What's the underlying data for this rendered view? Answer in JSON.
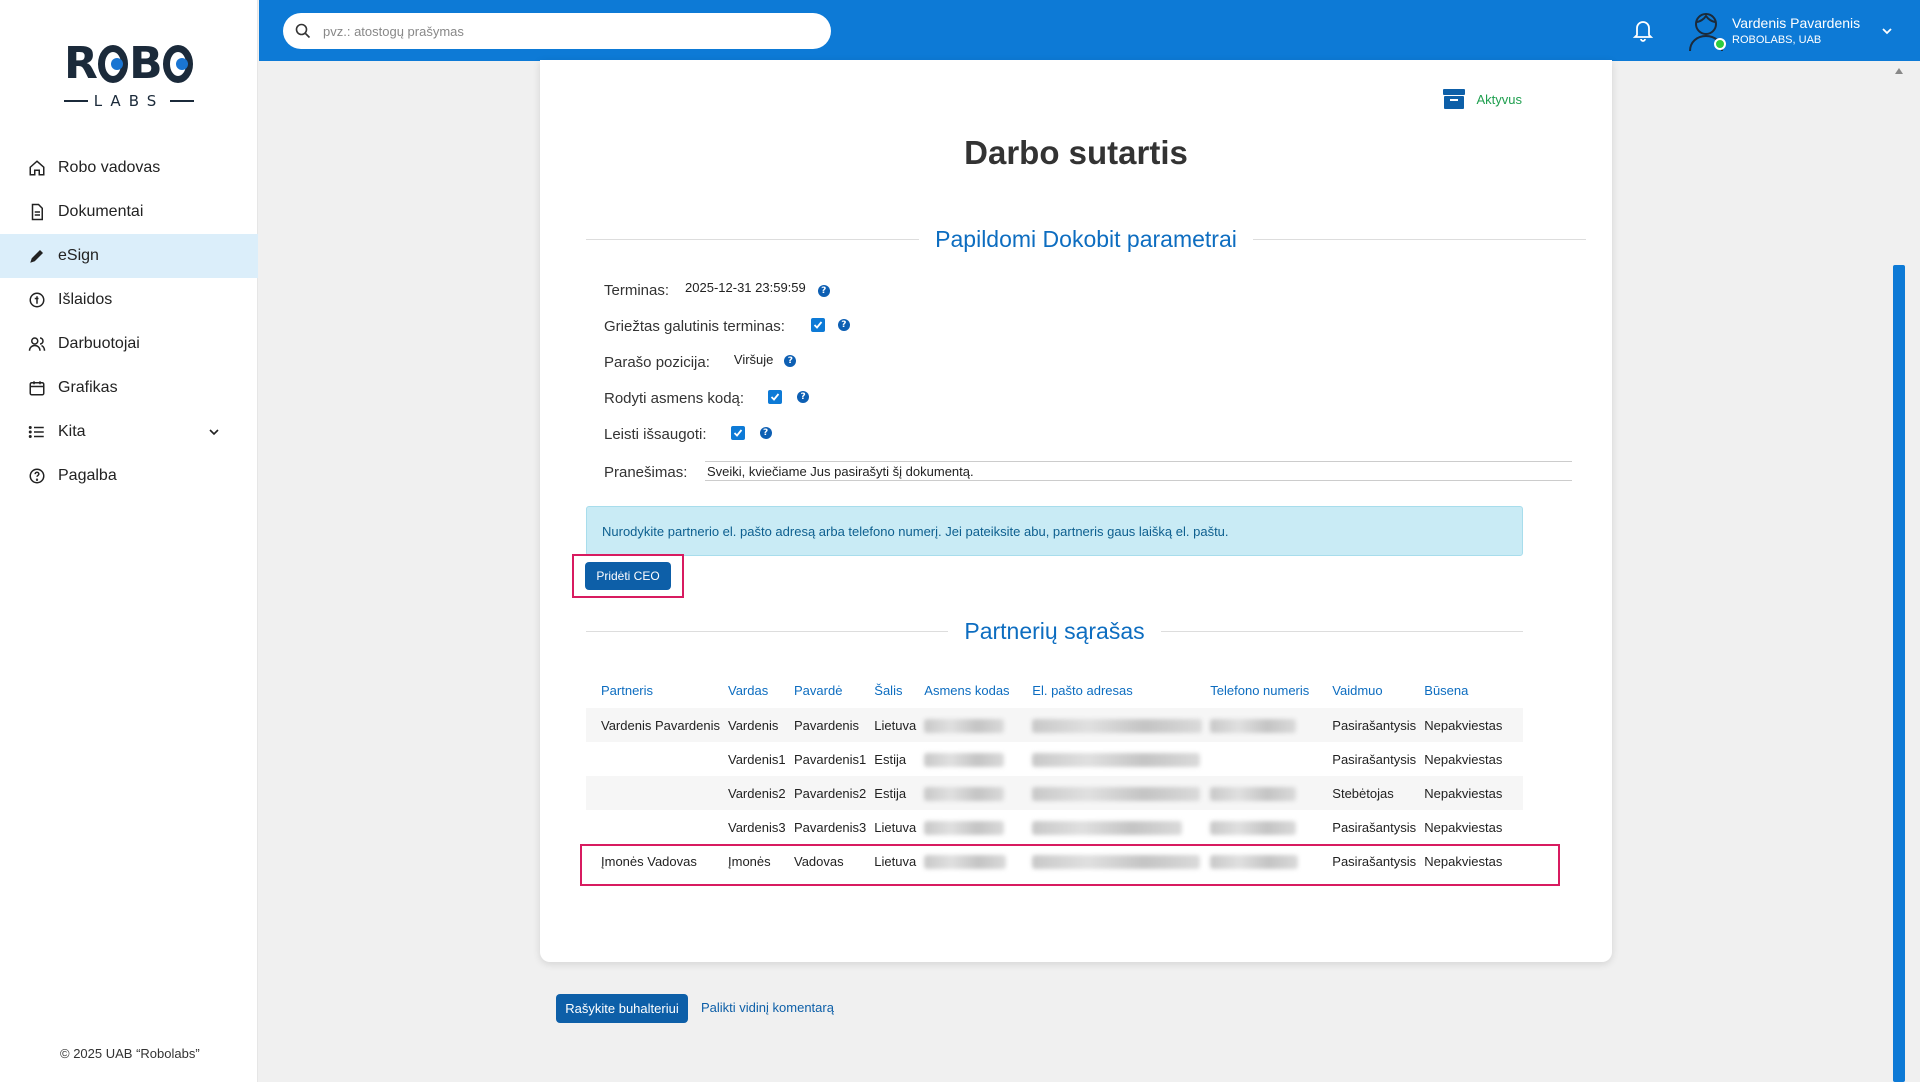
{
  "search": {
    "placeholder": "pvz.: atostogų prašymas"
  },
  "user": {
    "name": "Vardenis Pavardenis",
    "company": "ROBOLABS, UAB"
  },
  "logo": {
    "top": "ROBO",
    "bottom": "LABS"
  },
  "sidebar": {
    "items": [
      {
        "label": "Robo vadovas",
        "icon": "home-icon"
      },
      {
        "label": "Dokumentai",
        "icon": "document-icon"
      },
      {
        "label": "eSign",
        "icon": "pen-icon",
        "active": true
      },
      {
        "label": "Išlaidos",
        "icon": "expenses-icon"
      },
      {
        "label": "Darbuotojai",
        "icon": "users-icon"
      },
      {
        "label": "Grafikas",
        "icon": "calendar-icon"
      },
      {
        "label": "Kita",
        "icon": "list-icon"
      },
      {
        "label": "Pagalba",
        "icon": "help-circle-icon"
      }
    ],
    "copyright": "© 2025 UAB “Robolabs”"
  },
  "document": {
    "status": "Aktyvus",
    "title": "Darbo sutartis"
  },
  "dokobit": {
    "heading": "Papildomi Dokobit parametrai",
    "terminas_label": "Terminas:",
    "terminas_value": "2025-12-31 23:59:59",
    "strict_label": "Griežtas galutinis terminas:",
    "strict_checked": true,
    "position_label": "Parašo pozicija:",
    "position_value": "Viršuje",
    "show_code_label": "Rodyti asmens kodą:",
    "show_code_checked": true,
    "allow_save_label": "Leisti išsaugoti:",
    "allow_save_checked": true,
    "message_label": "Pranešimas:",
    "message_value": "Sveiki, kviečiame Jus pasirašyti šį dokumentą."
  },
  "info": {
    "text": "Nurodykite partnerio el. pašto adresą arba telefono numerį. Jei pateiksite abu, partneris gaus laišką el. paštu."
  },
  "add_ceo_label": "Pridėti CEO",
  "partners": {
    "heading": "Partnerių sąrašas",
    "columns": [
      "Partneris",
      "Vardas",
      "Pavardė",
      "Šalis",
      "Asmens kodas",
      "El. pašto adresas",
      "Telefono numeris",
      "Vaidmuo",
      "Būsena"
    ],
    "rows": [
      {
        "partner": "Vardenis Pavardenis",
        "first": "Vardenis",
        "last": "Pavardenis",
        "country": "Lietuva",
        "role": "Pasirašantysis",
        "status": "Nepakviestas"
      },
      {
        "partner": "",
        "first": "Vardenis1",
        "last": "Pavardenis1",
        "country": "Estija",
        "role": "Pasirašantysis",
        "status": "Nepakviestas"
      },
      {
        "partner": "",
        "first": "Vardenis2",
        "last": "Pavardenis2",
        "country": "Estija",
        "role": "Stebėtojas",
        "status": "Nepakviestas"
      },
      {
        "partner": "",
        "first": "Vardenis3",
        "last": "Pavardenis3",
        "country": "Lietuva",
        "role": "Pasirašantysis",
        "status": "Nepakviestas"
      },
      {
        "partner": "Įmonės Vadovas",
        "first": "Įmonės",
        "last": "Vadovas",
        "country": "Lietuva",
        "role": "Pasirašantysis",
        "status": "Nepakviestas"
      }
    ]
  },
  "actions": {
    "write_accountant": "Rašykite buhalteriui",
    "internal_comment": "Palikti vidinį komentarą"
  },
  "colors": {
    "primary": "#0d7ad6",
    "accent_green": "#1f9f4f",
    "highlight": "#d81b60"
  }
}
